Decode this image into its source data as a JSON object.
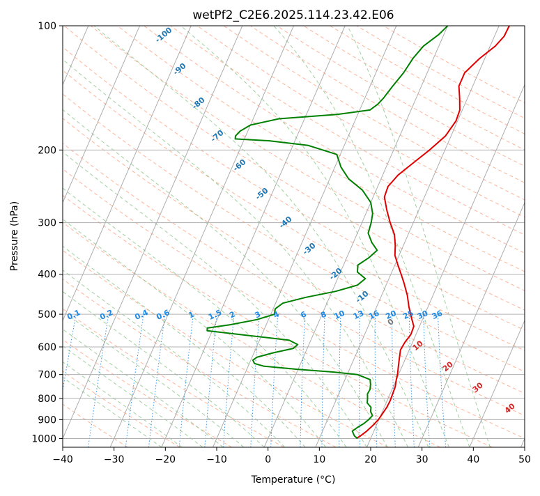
{
  "chart_data": {
    "type": "line",
    "title": "wetPf2_C2E6.2025.114.23.42.E06",
    "xlabel": "Temperature (°C)",
    "ylabel": "Pressure (hPa)",
    "xlim": [
      -40,
      50
    ],
    "ylim": [
      1050,
      100
    ],
    "y_scale": "log",
    "grid": true,
    "x_ticks": [
      "−40",
      "−30",
      "−20",
      "−10",
      "0",
      "10",
      "20",
      "30",
      "40",
      "50"
    ],
    "y_ticks": [
      "100",
      "200",
      "300",
      "400",
      "500",
      "600",
      "700",
      "800",
      "900",
      "1000"
    ],
    "series": [
      {
        "color": "#e00000",
        "points": [
          [
            1000,
            17.2
          ],
          [
            985,
            17.8
          ],
          [
            960,
            18.6
          ],
          [
            930,
            19.3
          ],
          [
            900,
            19.9
          ],
          [
            870,
            20.2
          ],
          [
            840,
            20.5
          ],
          [
            810,
            20.6
          ],
          [
            780,
            20.5
          ],
          [
            750,
            20.4
          ],
          [
            720,
            20.0
          ],
          [
            700,
            19.8
          ],
          [
            670,
            19.3
          ],
          [
            640,
            18.8
          ],
          [
            610,
            18.3
          ],
          [
            585,
            18.5
          ],
          [
            560,
            19.0
          ],
          [
            535,
            18.9
          ],
          [
            510,
            17.7
          ],
          [
            480,
            16.3
          ],
          [
            450,
            15.0
          ],
          [
            420,
            13.3
          ],
          [
            400,
            12.0
          ],
          [
            380,
            10.6
          ],
          [
            360,
            9.2
          ],
          [
            340,
            8.4
          ],
          [
            320,
            7.3
          ],
          [
            300,
            5.5
          ],
          [
            280,
            3.8
          ],
          [
            260,
            2.2
          ],
          [
            245,
            2.0
          ],
          [
            230,
            3.0
          ],
          [
            215,
            4.9
          ],
          [
            200,
            7.0
          ],
          [
            185,
            8.9
          ],
          [
            170,
            9.7
          ],
          [
            160,
            9.5
          ],
          [
            150,
            8.5
          ],
          [
            140,
            7.3
          ],
          [
            130,
            7.3
          ],
          [
            120,
            9.0
          ],
          [
            112,
            11.0
          ],
          [
            106,
            11.9
          ],
          [
            100,
            12.0
          ]
        ]
      },
      {
        "color": "#008000",
        "points": [
          [
            1000,
            17.4
          ],
          [
            985,
            16.6
          ],
          [
            960,
            15.8
          ],
          [
            940,
            16.5
          ],
          [
            920,
            17.4
          ],
          [
            900,
            18.0
          ],
          [
            880,
            18.4
          ],
          [
            860,
            17.7
          ],
          [
            840,
            17.4
          ],
          [
            820,
            16.3
          ],
          [
            800,
            16.0
          ],
          [
            780,
            15.6
          ],
          [
            760,
            15.7
          ],
          [
            740,
            15.4
          ],
          [
            720,
            14.9
          ],
          [
            700,
            12.0
          ],
          [
            690,
            7.0
          ],
          [
            680,
            0.0
          ],
          [
            668,
            -7.0
          ],
          [
            658,
            -9.0
          ],
          [
            646,
            -9.6
          ],
          [
            635,
            -9.0
          ],
          [
            620,
            -6.2
          ],
          [
            605,
            -2.7
          ],
          [
            592,
            -2.2
          ],
          [
            578,
            -4.2
          ],
          [
            562,
            -13.0
          ],
          [
            548,
            -21.0
          ],
          [
            540,
            -21.2
          ],
          [
            530,
            -17.0
          ],
          [
            515,
            -12.2
          ],
          [
            500,
            -9.3
          ],
          [
            485,
            -9.6
          ],
          [
            470,
            -8.6
          ],
          [
            455,
            -4.6
          ],
          [
            440,
            0.7
          ],
          [
            425,
            4.4
          ],
          [
            410,
            5.4
          ],
          [
            395,
            3.3
          ],
          [
            380,
            2.8
          ],
          [
            365,
            4.3
          ],
          [
            350,
            5.3
          ],
          [
            335,
            3.6
          ],
          [
            318,
            2.1
          ],
          [
            300,
            1.8
          ],
          [
            285,
            1.3
          ],
          [
            268,
            0.0
          ],
          [
            250,
            -2.7
          ],
          [
            235,
            -6.3
          ],
          [
            220,
            -8.8
          ],
          [
            205,
            -10.7
          ],
          [
            195,
            -17.0
          ],
          [
            190,
            -25.0
          ],
          [
            188,
            -31.8
          ],
          [
            185,
            -32.0
          ],
          [
            180,
            -31.5
          ],
          [
            174,
            -30.0
          ],
          [
            168,
            -25.0
          ],
          [
            164,
            -14.0
          ],
          [
            160,
            -8.0
          ],
          [
            155,
            -7.0
          ],
          [
            150,
            -6.4
          ],
          [
            140,
            -5.6
          ],
          [
            130,
            -4.6
          ],
          [
            120,
            -4.0
          ],
          [
            112,
            -3.0
          ],
          [
            105,
            -1.0
          ],
          [
            100,
            0.0
          ]
        ]
      }
    ],
    "mixing_ratio_labels": [
      "0.1",
      "0.2",
      "0.4",
      "0.6",
      "1",
      "1.5",
      "2",
      "3",
      "4",
      "6",
      "8",
      "10",
      "13",
      "16",
      "20",
      "25",
      "30",
      "36"
    ],
    "mixing_ratio_values": [
      0.1,
      0.2,
      0.4,
      0.6,
      1,
      1.5,
      2,
      3,
      4,
      6,
      8,
      10,
      13,
      16,
      20,
      25,
      30,
      36
    ],
    "moist_adiabat_labels": [
      "-100",
      "-90",
      "-80",
      "-70",
      "-60",
      "-50",
      "-40",
      "-30",
      "-20",
      "-10",
      "0",
      "10",
      "20",
      "30",
      "40"
    ],
    "dry_adiabat_color": "#ffa080",
    "moist_adiabat_color": "#80c080",
    "mixing_ratio_color": "#1e88e5",
    "isotherm_color": "#999999"
  }
}
